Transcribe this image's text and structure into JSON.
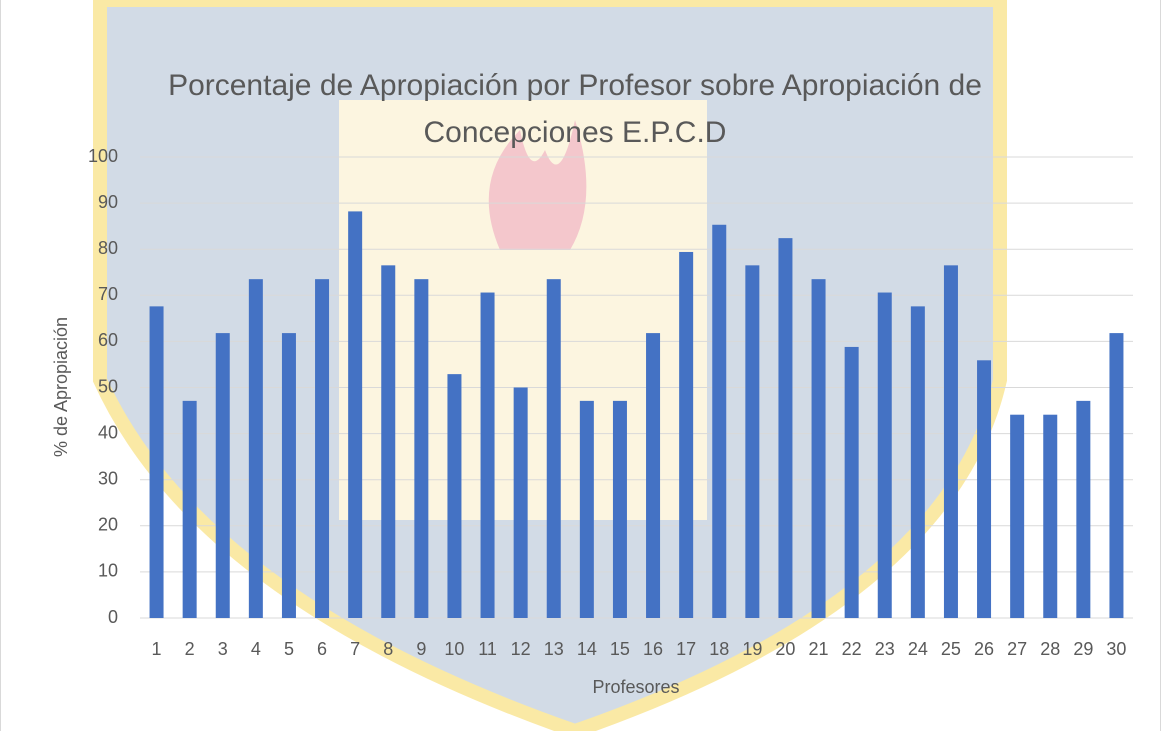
{
  "chart_data": {
    "type": "bar",
    "title": "Porcentaje de Apropiación por Profesor sobre Apropiación de Concepciones E.P.C.D",
    "x_label": "Profesores",
    "y_label": "% de Apropiación",
    "categories": [
      "1",
      "2",
      "3",
      "4",
      "5",
      "6",
      "7",
      "8",
      "9",
      "10",
      "11",
      "12",
      "13",
      "14",
      "15",
      "16",
      "17",
      "18",
      "19",
      "20",
      "21",
      "22",
      "23",
      "24",
      "25",
      "26",
      "27",
      "28",
      "29",
      "30"
    ],
    "values": [
      67.6,
      47.1,
      61.8,
      73.5,
      61.8,
      73.5,
      88.2,
      76.5,
      73.5,
      52.9,
      70.6,
      50,
      73.5,
      47.1,
      47.1,
      61.8,
      79.4,
      85.3,
      76.5,
      82.4,
      73.5,
      58.8,
      70.6,
      67.6,
      76.5,
      55.9,
      44.1,
      44.1,
      47.1,
      61.8
    ],
    "color": "#4472c4",
    "ylim": [
      0,
      100
    ],
    "yticks": [
      0,
      10,
      20,
      30,
      40,
      50,
      60,
      70,
      80,
      90,
      100
    ],
    "grid": true
  }
}
